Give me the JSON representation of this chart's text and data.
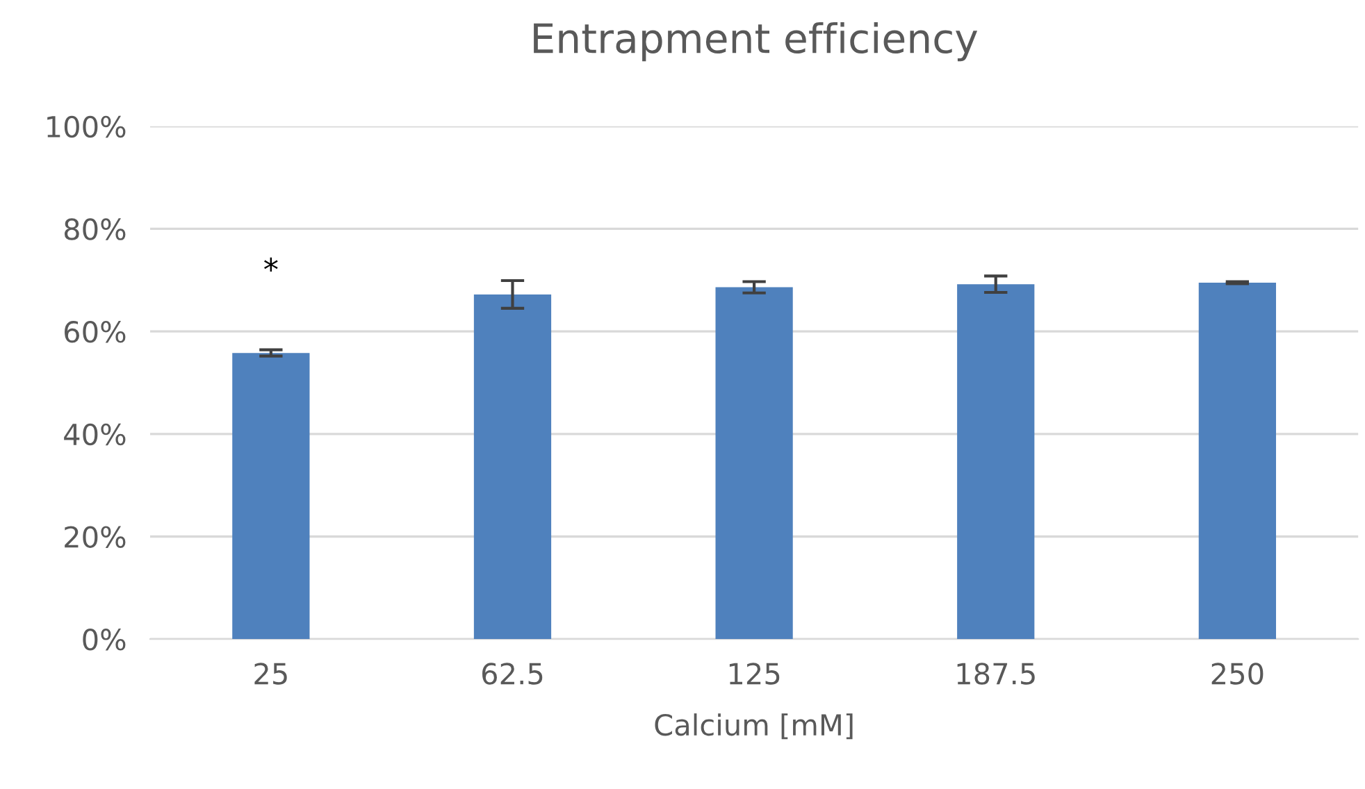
{
  "chart_data": {
    "type": "bar",
    "title": "Entrapment efficiency",
    "xlabel": "Calcium [mM]",
    "categories": [
      "25",
      "62.5",
      "125",
      "187.5",
      "250"
    ],
    "values": [
      55.8,
      67.2,
      68.6,
      69.2,
      69.5
    ],
    "errors": [
      0.6,
      2.7,
      1.1,
      1.6,
      0.2
    ],
    "color": "#4f81bd",
    "ylim": [
      0,
      100
    ],
    "yticks": [
      {
        "value": 0,
        "label": "0%"
      },
      {
        "value": 20,
        "label": "20%"
      },
      {
        "value": 40,
        "label": "40%"
      },
      {
        "value": 60,
        "label": "60%"
      },
      {
        "value": 80,
        "label": "80%"
      },
      {
        "value": 100,
        "label": "100%"
      }
    ],
    "grid": "y",
    "annotations": [
      "*"
    ]
  }
}
